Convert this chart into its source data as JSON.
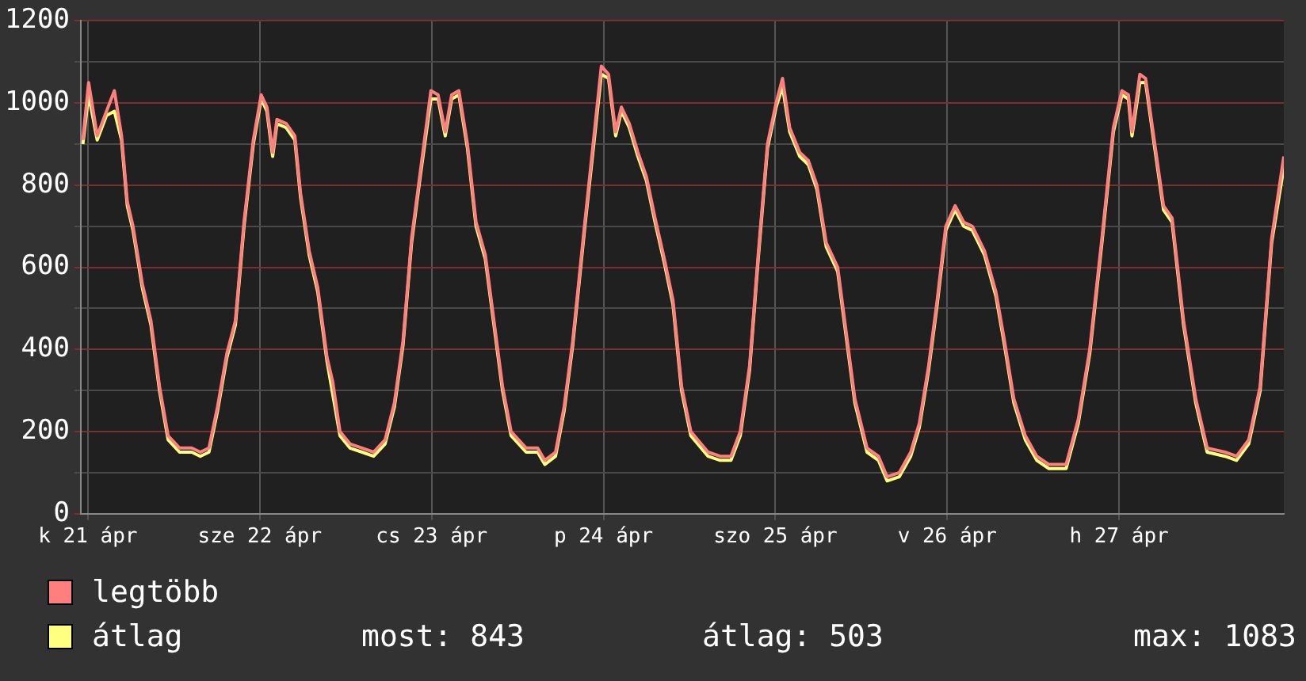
{
  "chart_data": {
    "type": "line",
    "legend": "bottom",
    "grid": true,
    "marker": "none",
    "line_style": "solid",
    "xlim": [
      "--04-21T10:00",
      "--04-28T10:00"
    ],
    "ylim": [
      0,
      1200
    ],
    "xticks": [
      {
        "value": "--04-21T11:00",
        "label": "k 21 ápr"
      },
      {
        "value": "--04-22T11:00",
        "label": "sze 22 ápr"
      },
      {
        "value": "--04-23T11:00",
        "label": "cs 23 ápr"
      },
      {
        "value": "--04-24T11:00",
        "label": "p 24 ápr"
      },
      {
        "value": "--04-25T11:00",
        "label": "szo 25 ápr"
      },
      {
        "value": "--04-26T11:00",
        "label": "v 26 ápr"
      },
      {
        "value": "--04-27T11:00",
        "label": "h 27 ápr"
      }
    ],
    "yticks": [
      0,
      {
        "value": 100,
        "label": null
      },
      200,
      {
        "value": 300,
        "label": null
      },
      400,
      {
        "value": 500,
        "label": null
      },
      600,
      {
        "value": 700,
        "label": null
      },
      800,
      {
        "value": 900,
        "label": null
      },
      1000,
      {
        "value": 1100,
        "label": null
      },
      1200
    ],
    "x": [
      "--04-21T10:18",
      "--04-21T11:06",
      "--04-21T12:18",
      "--04-21T13:36",
      "--04-21T14:42",
      "--04-21T15:42",
      "--04-21T16:30",
      "--04-21T17:18",
      "--04-21T18:36",
      "--04-21T19:48",
      "--04-21T21:00",
      "--04-21T22:12",
      "--04-21T23:48",
      "--04-22T01:30",
      "--04-22T02:42",
      "--04-22T03:54",
      "--04-22T05:06",
      "--04-22T06:24",
      "--04-22T07:36",
      "--04-22T08:48",
      "--04-22T10:06",
      "--04-22T11:12",
      "--04-22T12:00",
      "--04-22T12:48",
      "--04-22T13:24",
      "--04-22T14:42",
      "--04-22T15:54",
      "--04-22T16:42",
      "--04-22T17:54",
      "--04-22T19:06",
      "--04-22T20:24",
      "--04-22T21:12",
      "--04-22T22:12",
      "--04-22T23:36",
      "--04-23T01:18",
      "--04-23T02:54",
      "--04-23T04:30",
      "--04-23T05:48",
      "--04-23T07:00",
      "--04-23T08:12",
      "--04-23T09:24",
      "--04-23T10:54",
      "--04-23T11:54",
      "--04-23T12:54",
      "--04-23T13:48",
      "--04-23T14:48",
      "--04-23T16:00",
      "--04-23T17:12",
      "--04-23T18:30",
      "--04-23T19:42",
      "--04-23T20:54",
      "--04-23T22:06",
      "--04-24T00:12",
      "--04-24T01:48",
      "--04-24T02:48",
      "--04-24T04:18",
      "--04-24T05:30",
      "--04-24T06:42",
      "--04-24T08:24",
      "--04-24T10:42",
      "--04-24T11:42",
      "--04-24T12:42",
      "--04-24T13:30",
      "--04-24T14:36",
      "--04-24T15:48",
      "--04-24T17:00",
      "--04-24T18:12",
      "--04-24T19:30",
      "--04-24T20:42",
      "--04-24T21:54",
      "--04-24T23:12",
      "--04-25T01:36",
      "--04-25T03:18",
      "--04-25T04:48",
      "--04-25T06:06",
      "--04-25T07:24",
      "--04-25T08:36",
      "--04-25T09:54",
      "--04-25T11:06",
      "--04-25T12:00",
      "--04-25T13:00",
      "--04-25T14:24",
      "--04-25T15:36",
      "--04-25T16:48",
      "--04-25T18:06",
      "--04-25T19:42",
      "--04-25T20:54",
      "--04-25T22:06",
      "--04-25T23:48",
      "--04-26T01:24",
      "--04-26T02:36",
      "--04-26T04:18",
      "--04-26T05:54",
      "--04-26T07:06",
      "--04-26T08:24",
      "--04-26T09:36",
      "--04-26T10:48",
      "--04-26T12:06",
      "--04-26T13:18",
      "--04-26T14:30",
      "--04-26T16:12",
      "--04-26T17:48",
      "--04-26T19:00",
      "--04-26T20:18",
      "--04-26T21:54",
      "--04-26T23:30",
      "--04-27T01:12",
      "--04-27T03:36",
      "--04-27T05:18",
      "--04-27T06:54",
      "--04-27T08:36",
      "--04-27T10:12",
      "--04-27T11:24",
      "--04-27T12:18",
      "--04-27T12:48",
      "--04-27T13:54",
      "--04-27T14:42",
      "--04-27T15:54",
      "--04-27T17:12",
      "--04-27T18:24",
      "--04-27T20:00",
      "--04-27T21:42",
      "--04-27T23:18",
      "--04-28T01:48",
      "--04-28T03:24",
      "--04-28T05:06",
      "--04-28T06:42",
      "--04-28T08:18",
      "--04-28T10:00"
    ],
    "series": [
      {
        "name": "legtöbb",
        "color": "#ff7f7f",
        "values": [
          910,
          1050,
          920,
          980,
          1030,
          920,
          760,
          700,
          560,
          470,
          310,
          190,
          160,
          160,
          150,
          160,
          260,
          390,
          470,
          710,
          910,
          1020,
          990,
          880,
          960,
          950,
          920,
          780,
          640,
          550,
          380,
          320,
          200,
          170,
          160,
          150,
          180,
          270,
          420,
          670,
          830,
          1030,
          1020,
          930,
          1020,
          1030,
          900,
          710,
          630,
          470,
          310,
          200,
          160,
          160,
          130,
          150,
          260,
          420,
          710,
          1090,
          1070,
          930,
          990,
          950,
          880,
          820,
          720,
          620,
          520,
          310,
          200,
          150,
          140,
          140,
          200,
          360,
          630,
          900,
          1000,
          1060,
          940,
          880,
          860,
          800,
          660,
          600,
          440,
          280,
          160,
          140,
          90,
          100,
          150,
          220,
          360,
          520,
          700,
          750,
          710,
          700,
          640,
          540,
          420,
          280,
          190,
          140,
          120,
          120,
          230,
          400,
          670,
          940,
          1030,
          1020,
          930,
          1070,
          1060,
          910,
          750,
          720,
          470,
          280,
          160,
          150,
          140,
          180,
          310,
          670,
          870
        ]
      },
      {
        "name": "átlag",
        "color": "#ffff80",
        "values": [
          900,
          1020,
          910,
          970,
          980,
          910,
          750,
          690,
          550,
          460,
          300,
          180,
          150,
          150,
          140,
          150,
          250,
          380,
          460,
          700,
          900,
          1010,
          980,
          870,
          950,
          940,
          910,
          770,
          630,
          540,
          370,
          290,
          190,
          160,
          150,
          140,
          170,
          260,
          410,
          660,
          820,
          1010,
          1010,
          920,
          1010,
          1020,
          890,
          700,
          620,
          460,
          300,
          190,
          150,
          150,
          120,
          140,
          250,
          410,
          700,
          1070,
          1060,
          920,
          980,
          940,
          870,
          810,
          710,
          610,
          510,
          300,
          190,
          140,
          130,
          130,
          190,
          350,
          620,
          890,
          990,
          1040,
          930,
          870,
          850,
          790,
          650,
          590,
          430,
          270,
          150,
          130,
          80,
          90,
          140,
          210,
          350,
          510,
          690,
          740,
          700,
          690,
          630,
          530,
          410,
          270,
          180,
          130,
          110,
          110,
          220,
          390,
          660,
          930,
          1020,
          1010,
          920,
          1050,
          1050,
          900,
          740,
          710,
          460,
          270,
          150,
          140,
          130,
          170,
          300,
          660,
          843
        ]
      }
    ],
    "annotations": [
      "most: 843",
      "átlag: 503",
      "max: 1083"
    ]
  }
}
